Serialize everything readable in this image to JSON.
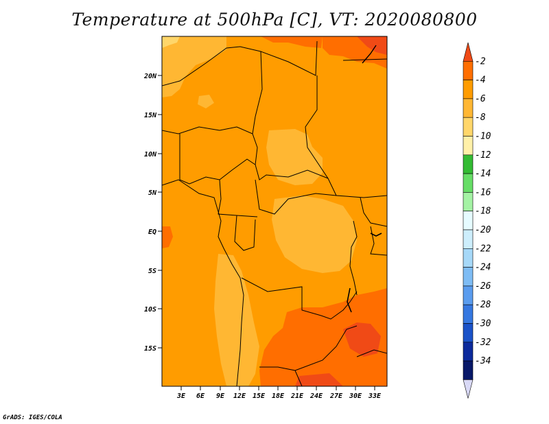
{
  "title": "Temperature at 500hPa [C], VT: 2020080800",
  "credit": "GrADS: IGES/COLA",
  "map": {
    "lat_ticks": [
      "20N",
      "15N",
      "10N",
      "5N",
      "EQ",
      "5S",
      "10S",
      "15S"
    ],
    "lon_ticks": [
      "3E",
      "6E",
      "9E",
      "12E",
      "15E",
      "18E",
      "21E",
      "24E",
      "27E",
      "30E",
      "33E"
    ]
  },
  "colorbar": {
    "levels": [
      "-2",
      "-4",
      "-6",
      "-8",
      "-10",
      "-12",
      "-14",
      "-16",
      "-18",
      "-20",
      "-22",
      "-24",
      "-26",
      "-28",
      "-30",
      "-32",
      "-34"
    ],
    "colors": [
      "#f04a16",
      "#ff6e00",
      "#ff9c00",
      "#ffb733",
      "#ffd66a",
      "#fff0a8",
      "#33bb33",
      "#66dd66",
      "#a4f2a4",
      "#e6fbff",
      "#cdeefc",
      "#a6d8f8",
      "#7ebcf4",
      "#5a9cee",
      "#3577e0",
      "#1a52c8",
      "#0c2a9c",
      "#081868",
      "#d9d9f6"
    ]
  }
}
